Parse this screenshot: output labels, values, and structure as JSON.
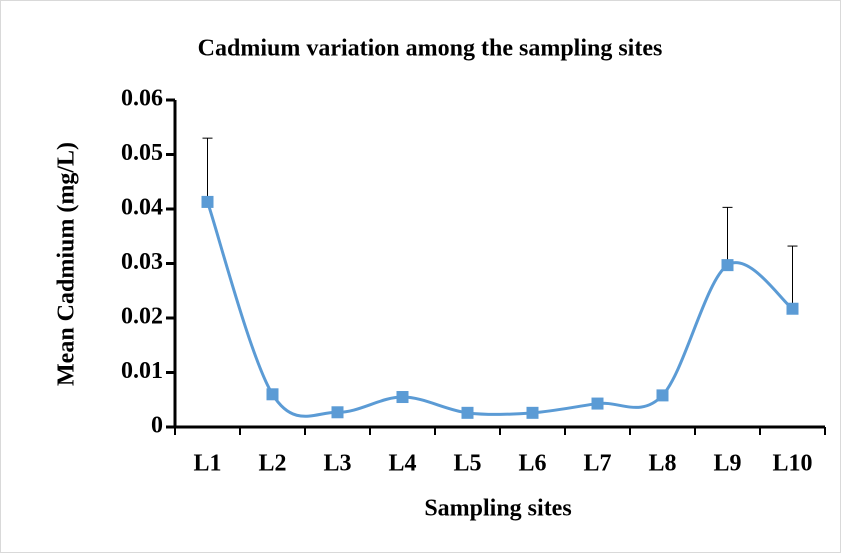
{
  "chart_data": {
    "type": "line",
    "title": "Cadmium variation among the sampling sites",
    "x_label": "Sampling sites",
    "y_label": "Mean Cadmium (mg/L)",
    "categories": [
      "L1",
      "L2",
      "L3",
      "L4",
      "L5",
      "L6",
      "L7",
      "L8",
      "L9",
      "L10"
    ],
    "series": [
      {
        "name": "Cadmium",
        "color": "#5b9bd5",
        "values": [
          0.0413,
          0.006,
          0.0027,
          0.0055,
          0.0026,
          0.0026,
          0.0043,
          0.0058,
          0.0297,
          0.0217
        ],
        "errors": [
          0.0117,
          null,
          null,
          null,
          null,
          null,
          null,
          null,
          0.0106,
          0.0115
        ]
      }
    ],
    "ylim": [
      0,
      0.06
    ],
    "yticks": [
      0,
      0.01,
      0.02,
      0.03,
      0.04,
      0.05,
      0.06
    ]
  }
}
